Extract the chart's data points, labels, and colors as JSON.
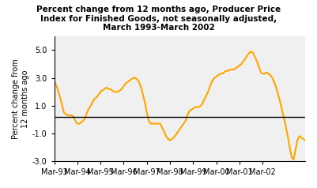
{
  "title": "Percent change from 12 months ago, Producer Price\nIndex for Finished Goods, not seasonally adjusted,\nMarch 1993-March 2002",
  "ylabel": "Percent change from\n12 months ago",
  "line_color": "#FFA500",
  "bg_color": "#ffffff",
  "plot_bg_color": "#f0f0f0",
  "ylim": [
    -3.0,
    6.0
  ],
  "yticks": [
    -3.0,
    -1.0,
    1.0,
    3.0,
    5.0
  ],
  "ytick_labels": [
    "-3.0",
    "-1.0",
    "1.0",
    "3.0",
    "5.0"
  ],
  "hline_y": 0.2,
  "xtick_labels": [
    "Mar-93",
    "Mar-94",
    "Mar-95",
    "Mar-96",
    "Mar-97",
    "Mar-98",
    "Mar-99",
    "Mar-00",
    "Mar-01",
    "Mar-02"
  ],
  "ppi_data": [
    2.7,
    2.5,
    2.1,
    1.6,
    1.1,
    0.5,
    0.4,
    0.3,
    0.3,
    0.3,
    0.2,
    -0.1,
    -0.3,
    -0.3,
    -0.2,
    -0.1,
    0.1,
    0.5,
    0.8,
    1.0,
    1.3,
    1.5,
    1.6,
    1.8,
    2.0,
    2.1,
    2.2,
    2.3,
    2.2,
    2.2,
    2.1,
    2.0,
    2.0,
    2.0,
    2.1,
    2.2,
    2.4,
    2.6,
    2.7,
    2.8,
    2.9,
    3.0,
    3.0,
    2.9,
    2.7,
    2.3,
    1.8,
    1.2,
    0.5,
    -0.1,
    -0.3,
    -0.3,
    -0.3,
    -0.3,
    -0.3,
    -0.3,
    -0.6,
    -0.9,
    -1.2,
    -1.4,
    -1.5,
    -1.4,
    -1.3,
    -1.1,
    -0.9,
    -0.7,
    -0.5,
    -0.3,
    -0.1,
    0.3,
    0.6,
    0.7,
    0.8,
    0.9,
    0.9,
    0.9,
    1.0,
    1.2,
    1.5,
    1.8,
    2.1,
    2.5,
    2.8,
    3.0,
    3.1,
    3.2,
    3.3,
    3.3,
    3.4,
    3.5,
    3.5,
    3.6,
    3.6,
    3.6,
    3.7,
    3.8,
    3.9,
    4.0,
    4.2,
    4.4,
    4.6,
    4.8,
    4.9,
    4.8,
    4.5,
    4.2,
    3.8,
    3.4,
    3.3,
    3.3,
    3.4,
    3.3,
    3.2,
    3.0,
    2.7,
    2.3,
    1.8,
    1.3,
    0.7,
    0.1,
    -0.5,
    -1.2,
    -2.0,
    -2.7,
    -2.9,
    -2.2,
    -1.5,
    -1.2,
    -1.3,
    -1.4,
    -1.5
  ]
}
